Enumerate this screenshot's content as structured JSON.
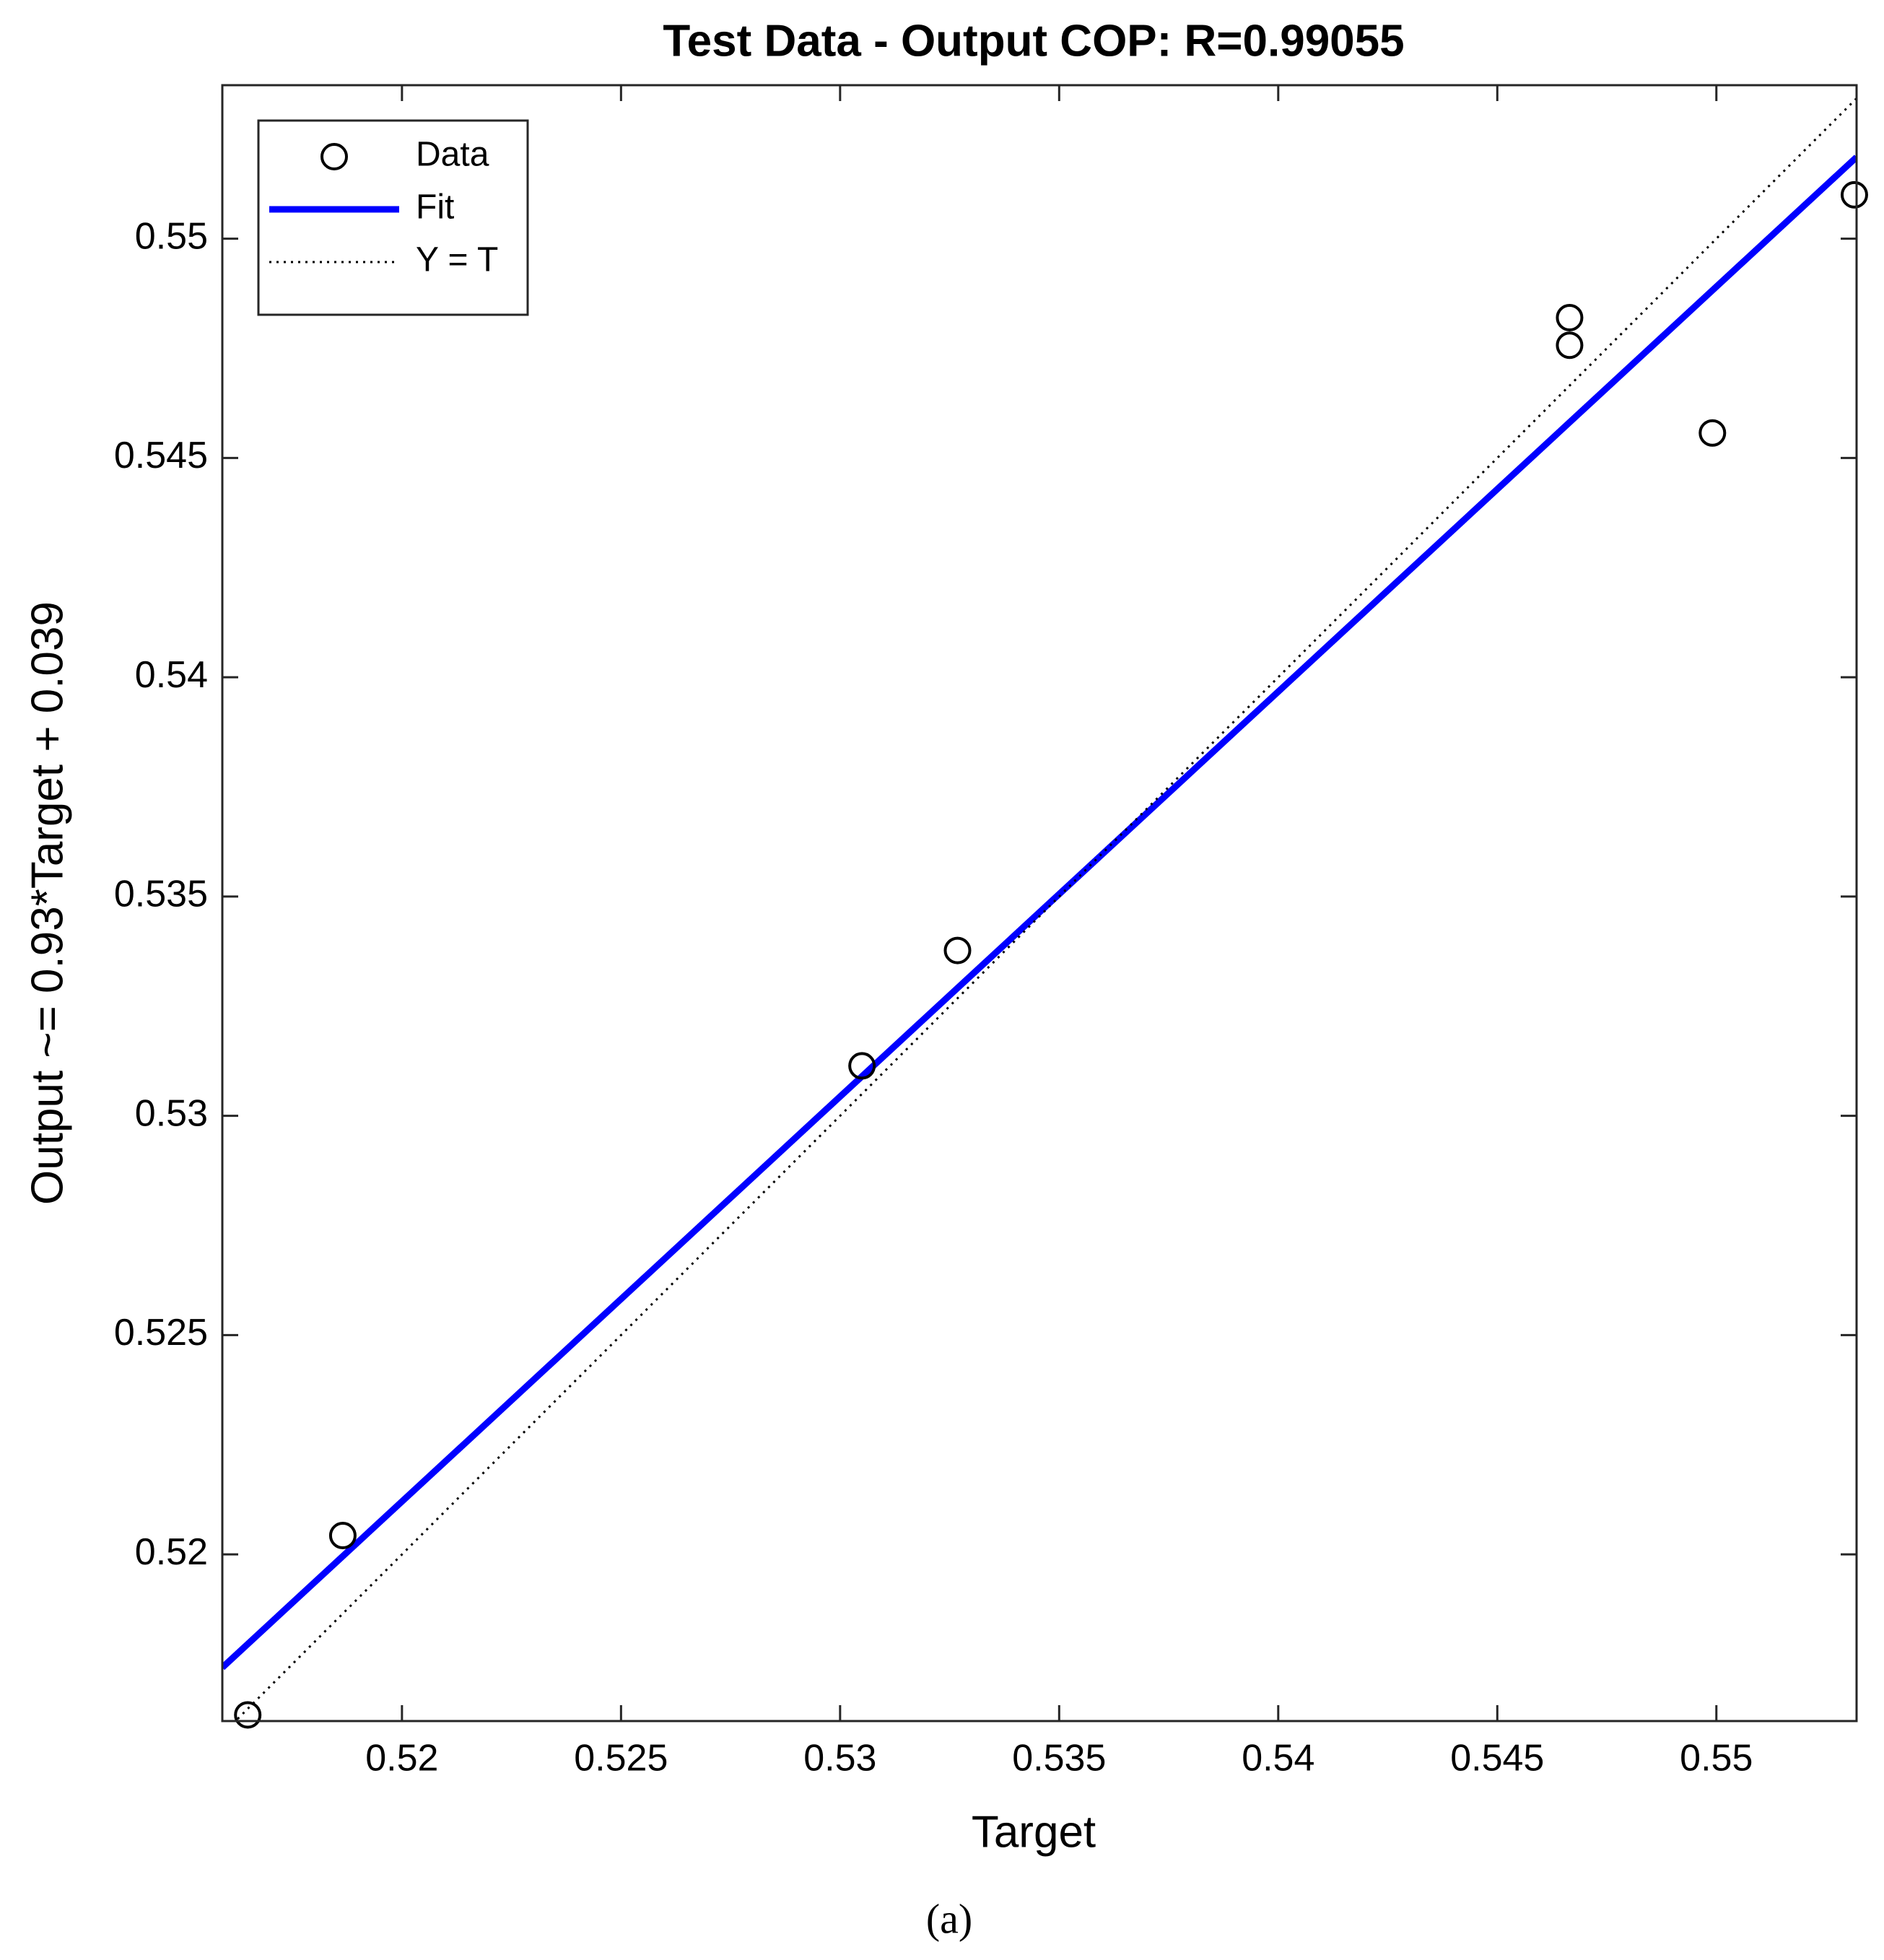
{
  "chart_data": {
    "type": "scatter",
    "title": "Test Data - Output COP: R=0.99055",
    "x_label": "Target",
    "y_label": "Output ~= 0.93*Target + 0.039",
    "caption": "(a)",
    "xlim": [
      0.5159,
      0.5532
    ],
    "ylim": [
      0.5162,
      0.5535
    ],
    "xticks": [
      0.52,
      0.525,
      0.53,
      0.535,
      0.54,
      0.545,
      0.55
    ],
    "yticks": [
      0.52,
      0.525,
      0.53,
      0.535,
      0.54,
      0.545,
      0.55
    ],
    "grid": false,
    "legend": "upper left",
    "series": [
      {
        "name": "Data",
        "color": "#000000",
        "style": "marker",
        "x": [
          0.51648,
          0.51865,
          0.5305,
          0.53268,
          0.54665,
          0.54665,
          0.54991,
          0.55315
        ],
        "values": [
          0.51634,
          0.52043,
          0.53114,
          0.53377,
          0.5482,
          0.54757,
          0.54557,
          0.551
        ]
      },
      {
        "name": "Fit",
        "color": "#0000ff",
        "style": "solid",
        "x": [
          0.5159,
          0.5532
        ],
        "values": [
          0.51742,
          0.55186
        ]
      },
      {
        "name": "Y = T",
        "color": "#000000",
        "style": "dotted",
        "x": [
          0.5159,
          0.5532
        ],
        "values": [
          0.5159,
          0.5532
        ]
      }
    ]
  }
}
